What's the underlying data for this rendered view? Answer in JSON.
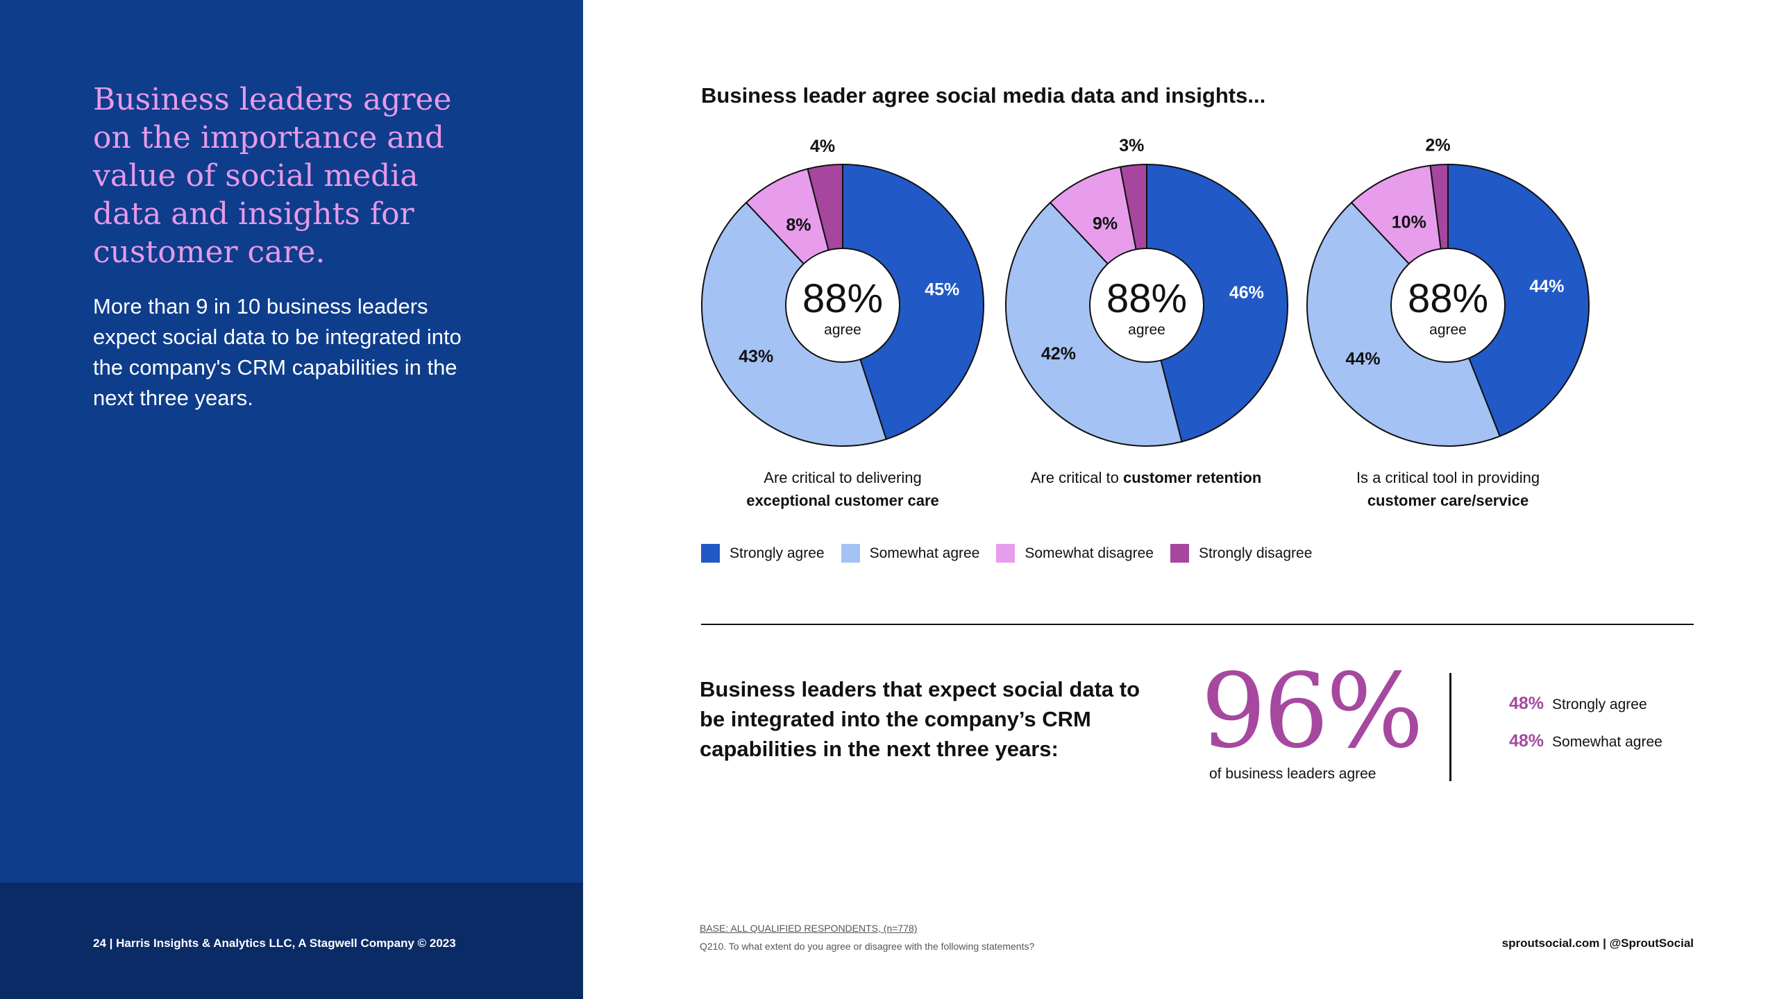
{
  "left": {
    "heading": "Business leaders agree on the importance and value of social media data and insights for customer care.",
    "body": "More than 9 in 10 business leaders expect social data to be integrated into the company's CRM capabilities in the next three years.",
    "page_footer": "24  |  Harris Insights & Analytics LLC, A Stagwell Company © 2023"
  },
  "main": {
    "title": "Business leader agree social media data and insights..."
  },
  "colors": {
    "strongly_agree": "#2159c6",
    "somewhat_agree": "#a4c2f4",
    "somewhat_disagree": "#e89cec",
    "strongly_disagree": "#a6469f",
    "accent": "#a6489f"
  },
  "chart_data": {
    "type": "pie",
    "categories": [
      "Strongly agree",
      "Somewhat agree",
      "Somewhat disagree",
      "Strongly disagree"
    ],
    "pies": [
      {
        "center_value": "88%",
        "center_label": "agree",
        "caption_plain": "Are critical to delivering",
        "caption_bold": "exceptional customer care",
        "values": [
          45,
          43,
          8,
          4
        ],
        "labels": [
          "45%",
          "43%",
          "8%",
          "4%"
        ]
      },
      {
        "center_value": "88%",
        "center_label": "agree",
        "caption_plain": "Are critical to",
        "caption_bold": "customer retention",
        "values": [
          46,
          42,
          9,
          3
        ],
        "labels": [
          "46%",
          "42%",
          "9%",
          "3%"
        ]
      },
      {
        "center_value": "88%",
        "center_label": "agree",
        "caption_plain": "Is a critical tool in providing",
        "caption_bold": "customer care/service",
        "values": [
          44,
          44,
          10,
          2
        ],
        "labels": [
          "44%",
          "44%",
          "10%",
          "2%"
        ]
      }
    ],
    "legend": [
      "Strongly agree",
      "Somewhat agree",
      "Somewhat disagree",
      "Strongly disagree"
    ]
  },
  "crm": {
    "heading": "Business leaders that expect social data to be integrated into the company’s CRM capabilities in the next three years:",
    "big_value": "96%",
    "big_sub": "of business leaders agree",
    "splits": [
      {
        "pct": "48%",
        "label": "Strongly agree"
      },
      {
        "pct": "48%",
        "label": "Somewhat agree"
      }
    ]
  },
  "footer": {
    "base": "BASE: ALL QUALIFIED RESPONDENTS, (n=778)",
    "question": "Q210. To what extent do you agree or disagree with the following statements?",
    "right": "sproutsocial.com   |   @SproutSocial"
  }
}
